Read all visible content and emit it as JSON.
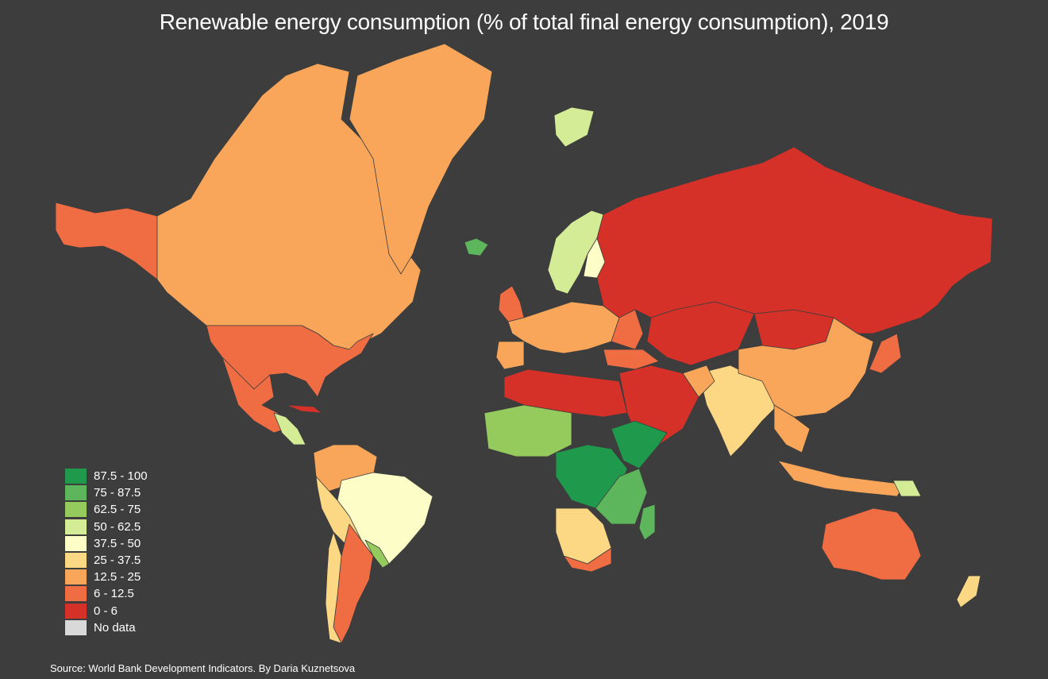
{
  "title": "Renewable energy consumption (% of total final energy consumption), 2019",
  "source": "Source: World Bank Development Indicators. By Daria Kuznetsova",
  "colors": {
    "background": "#3d3d3d",
    "c87_100": "#1f9a4c",
    "c75_87": "#5db65b",
    "c62_75": "#95cb5d",
    "c50_62": "#d4ec95",
    "c37_50": "#fdfdc8",
    "c25_37": "#fcd884",
    "c12_25": "#f9a65a",
    "c6_12": "#f06d43",
    "c0_6": "#d63129",
    "nodata": "#d9d9d9"
  },
  "legend": [
    {
      "label": "87.5 - 100",
      "color": "#1f9a4c"
    },
    {
      "label": "75 - 87.5",
      "color": "#5db65b"
    },
    {
      "label": "62.5 - 75",
      "color": "#95cb5d"
    },
    {
      "label": "50 - 62.5",
      "color": "#d4ec95"
    },
    {
      "label": "37.5 - 50",
      "color": "#fdfdc8"
    },
    {
      "label": "25 - 37.5",
      "color": "#fcd884"
    },
    {
      "label": "12.5 - 25",
      "color": "#f9a65a"
    },
    {
      "label": "6 - 12.5",
      "color": "#f06d43"
    },
    {
      "label": "0 - 6",
      "color": "#d63129"
    },
    {
      "label": "No data",
      "color": "#d9d9d9"
    }
  ]
}
